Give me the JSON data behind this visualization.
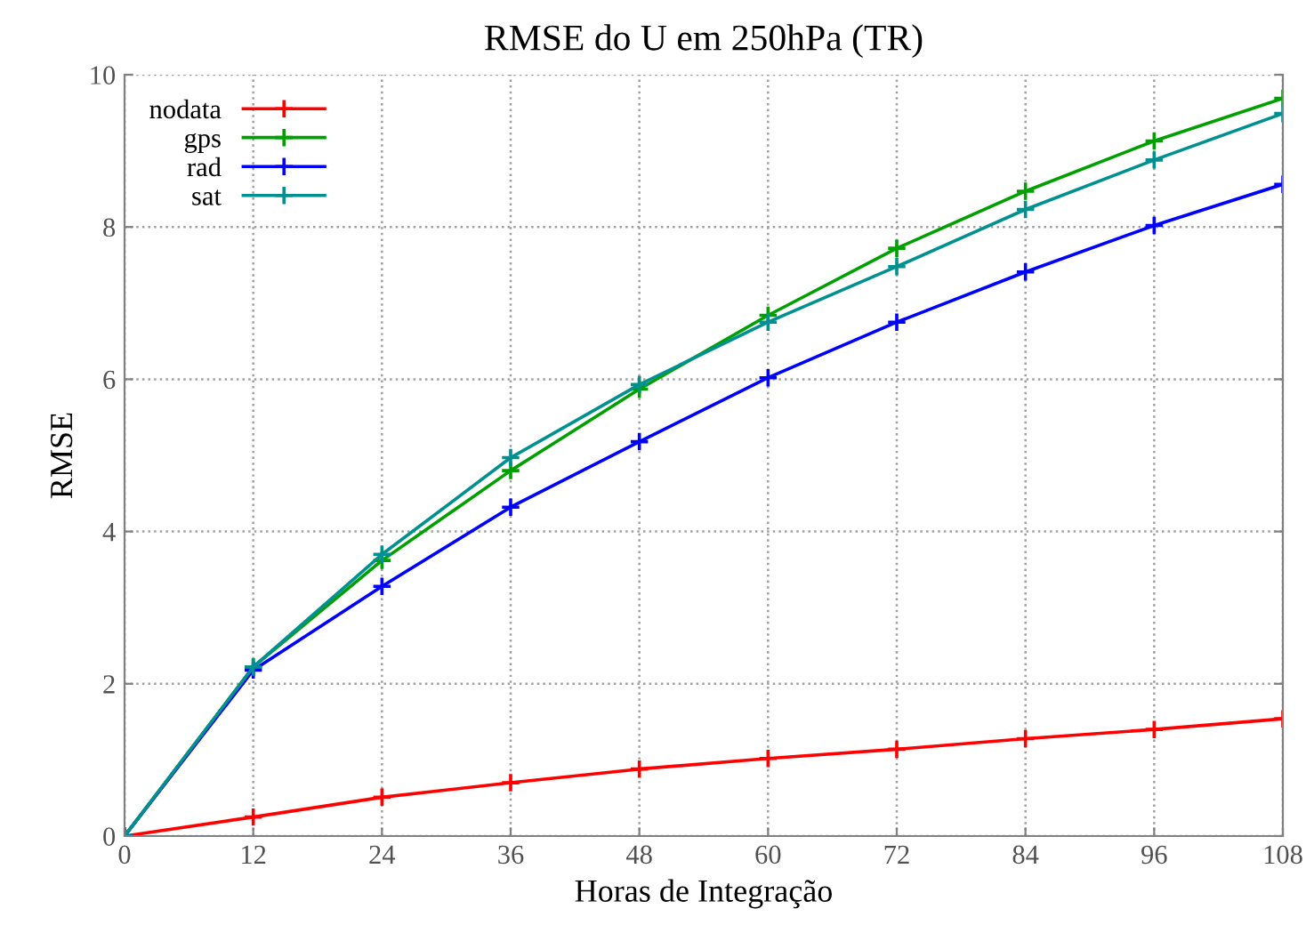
{
  "chart_data": {
    "type": "line",
    "title": "RMSE do U em 250hPa (TR)",
    "xlabel": "Horas de Integração",
    "ylabel": "RMSE",
    "x": [
      0,
      12,
      24,
      36,
      48,
      60,
      72,
      84,
      96,
      108
    ],
    "series": [
      {
        "name": "nodata",
        "color": "#ff0000",
        "values": [
          0,
          0.25,
          0.51,
          0.7,
          0.88,
          1.02,
          1.14,
          1.28,
          1.4,
          1.54
        ]
      },
      {
        "name": "gps",
        "color": "#00a000",
        "values": [
          0,
          2.22,
          3.62,
          4.8,
          5.87,
          6.84,
          7.72,
          8.47,
          9.13,
          9.69
        ]
      },
      {
        "name": "rad",
        "color": "#0000ff",
        "values": [
          0,
          2.18,
          3.28,
          4.32,
          5.18,
          6.02,
          6.75,
          7.41,
          8.02,
          8.56
        ]
      },
      {
        "name": "sat",
        "color": "#009090",
        "values": [
          0,
          2.22,
          3.7,
          4.97,
          5.93,
          6.75,
          7.48,
          8.23,
          8.88,
          9.49
        ]
      }
    ],
    "xlim": [
      0,
      108
    ],
    "xticks": [
      0,
      12,
      24,
      36,
      48,
      60,
      72,
      84,
      96,
      108
    ],
    "ylim": [
      0,
      10
    ],
    "yticks": [
      0,
      2,
      4,
      6,
      8,
      10
    ],
    "grid": true,
    "legend": "top left",
    "marker": "cross",
    "line_style": "solid"
  }
}
